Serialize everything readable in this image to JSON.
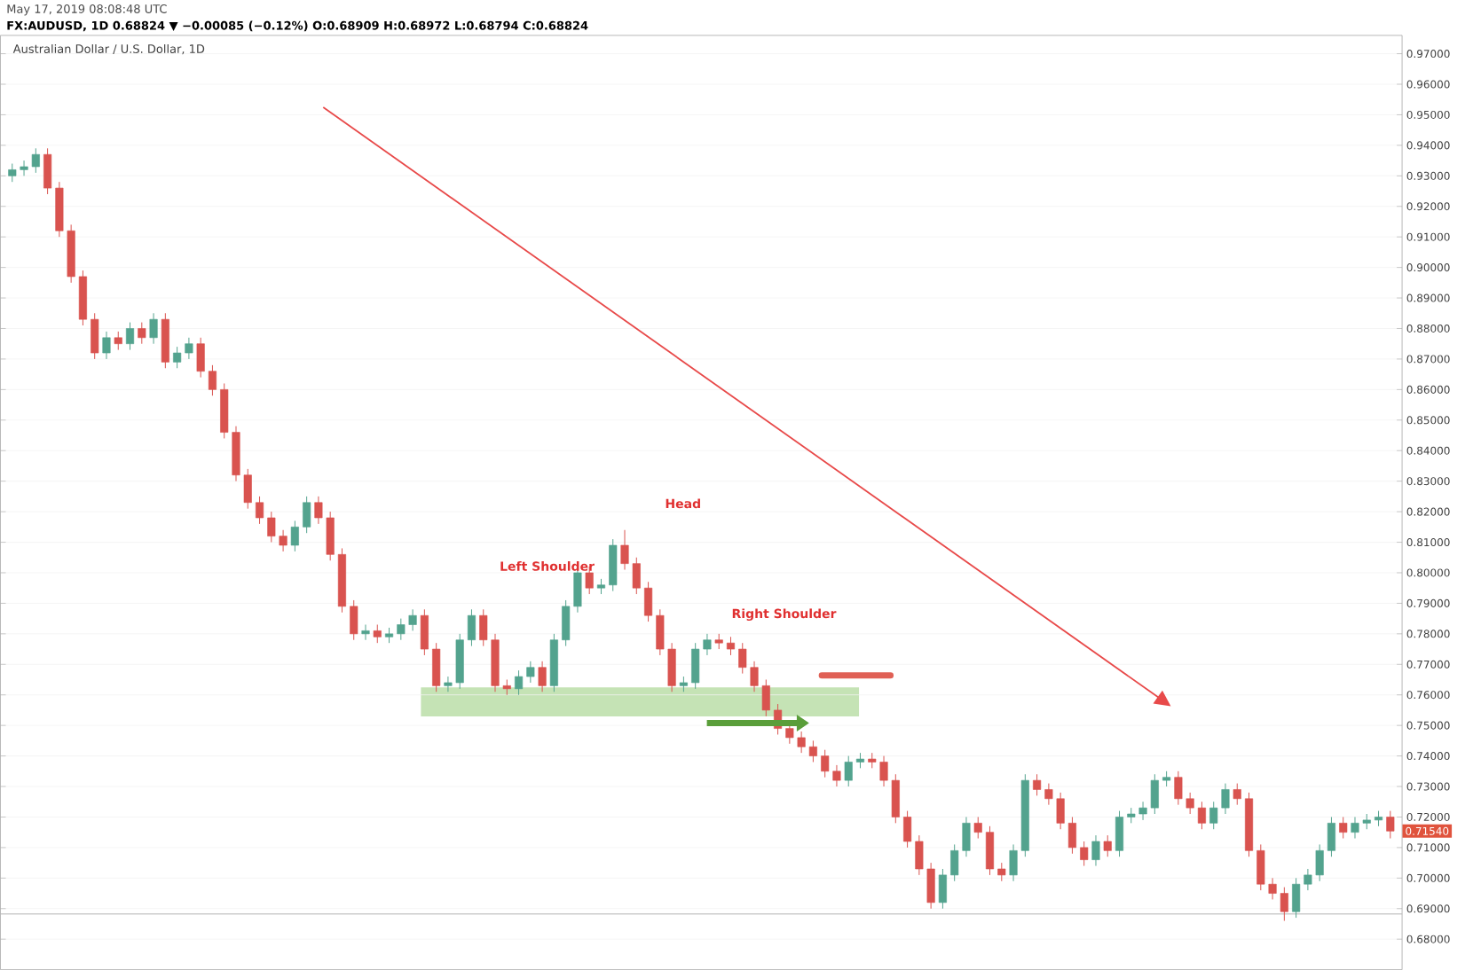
{
  "chart_data": {
    "type": "candlestick",
    "title": "May 17, 2019 08:08:48 UTC",
    "subtitle": "FX:AUDUSD, 1D 0.68824 ▼ −0.00085 (−0.12%) O:0.68909 H:0.68972 L:0.68794 C:0.68824",
    "annotations": [
      "Australian Dollar / U.S. Dollar, 1D",
      "Left Shoulder",
      "Head",
      "Right Shoulder",
      "0.71540"
    ],
    "categories": [
      null,
      null,
      null,
      null,
      null,
      null,
      null,
      null,
      null,
      null,
      null,
      null,
      null,
      null,
      null,
      null,
      null,
      null,
      null,
      null,
      null,
      null,
      null,
      null,
      null,
      null,
      null,
      null,
      null,
      null,
      null,
      null,
      null,
      null,
      null,
      null,
      null,
      null,
      null,
      null,
      null,
      null,
      null,
      null,
      null,
      null,
      null,
      null,
      null,
      null,
      null,
      null,
      null,
      null,
      null,
      null,
      null,
      null,
      null,
      null,
      null,
      null,
      null,
      null,
      null,
      null,
      null,
      null,
      null,
      null,
      null,
      null,
      null,
      null,
      null,
      null,
      null,
      null,
      null,
      null,
      null,
      null,
      null,
      null,
      null,
      null,
      null,
      null,
      null,
      null,
      null,
      null,
      null,
      null,
      null,
      null,
      null,
      null,
      null,
      null,
      null,
      null,
      null,
      null,
      null,
      null,
      null,
      null,
      null,
      null,
      null,
      null,
      null,
      null,
      null,
      null,
      null,
      null
    ],
    "ohlc": [
      [
        0.93,
        0.934,
        0.928,
        0.932
      ],
      [
        0.932,
        0.935,
        0.93,
        0.933
      ],
      [
        0.933,
        0.939,
        0.931,
        0.937
      ],
      [
        0.937,
        0.939,
        0.924,
        0.926
      ],
      [
        0.926,
        0.928,
        0.91,
        0.912
      ],
      [
        0.912,
        0.914,
        0.895,
        0.897
      ],
      [
        0.897,
        0.899,
        0.881,
        0.883
      ],
      [
        0.883,
        0.885,
        0.87,
        0.872
      ],
      [
        0.872,
        0.879,
        0.87,
        0.877
      ],
      [
        0.877,
        0.879,
        0.873,
        0.875
      ],
      [
        0.875,
        0.882,
        0.873,
        0.88
      ],
      [
        0.88,
        0.882,
        0.875,
        0.877
      ],
      [
        0.877,
        0.885,
        0.875,
        0.883
      ],
      [
        0.883,
        0.885,
        0.867,
        0.869
      ],
      [
        0.869,
        0.874,
        0.867,
        0.872
      ],
      [
        0.872,
        0.877,
        0.87,
        0.875
      ],
      [
        0.875,
        0.877,
        0.864,
        0.866
      ],
      [
        0.866,
        0.868,
        0.858,
        0.86
      ],
      [
        0.86,
        0.862,
        0.844,
        0.846
      ],
      [
        0.846,
        0.848,
        0.83,
        0.832
      ],
      [
        0.832,
        0.834,
        0.821,
        0.823
      ],
      [
        0.823,
        0.825,
        0.816,
        0.818
      ],
      [
        0.818,
        0.82,
        0.81,
        0.812
      ],
      [
        0.812,
        0.814,
        0.807,
        0.809
      ],
      [
        0.809,
        0.817,
        0.807,
        0.815
      ],
      [
        0.815,
        0.825,
        0.813,
        0.823
      ],
      [
        0.823,
        0.825,
        0.816,
        0.818
      ],
      [
        0.818,
        0.82,
        0.804,
        0.806
      ],
      [
        0.806,
        0.808,
        0.787,
        0.789
      ],
      [
        0.789,
        0.791,
        0.778,
        0.78
      ],
      [
        0.78,
        0.783,
        0.778,
        0.781
      ],
      [
        0.781,
        0.783,
        0.777,
        0.779
      ],
      [
        0.779,
        0.782,
        0.777,
        0.78
      ],
      [
        0.78,
        0.785,
        0.778,
        0.783
      ],
      [
        0.783,
        0.788,
        0.781,
        0.786
      ],
      [
        0.786,
        0.788,
        0.773,
        0.775
      ],
      [
        0.775,
        0.777,
        0.761,
        0.763
      ],
      [
        0.763,
        0.766,
        0.761,
        0.764
      ],
      [
        0.764,
        0.78,
        0.762,
        0.778
      ],
      [
        0.778,
        0.788,
        0.776,
        0.786
      ],
      [
        0.786,
        0.788,
        0.776,
        0.778
      ],
      [
        0.778,
        0.78,
        0.761,
        0.763
      ],
      [
        0.763,
        0.765,
        0.76,
        0.762
      ],
      [
        0.762,
        0.768,
        0.76,
        0.766
      ],
      [
        0.766,
        0.771,
        0.764,
        0.769
      ],
      [
        0.769,
        0.771,
        0.761,
        0.763
      ],
      [
        0.763,
        0.78,
        0.761,
        0.778
      ],
      [
        0.778,
        0.791,
        0.776,
        0.789
      ],
      [
        0.789,
        0.802,
        0.787,
        0.8
      ],
      [
        0.8,
        0.802,
        0.793,
        0.795
      ],
      [
        0.795,
        0.798,
        0.793,
        0.796
      ],
      [
        0.796,
        0.811,
        0.794,
        0.809
      ],
      [
        0.809,
        0.814,
        0.801,
        0.803
      ],
      [
        0.803,
        0.805,
        0.793,
        0.795
      ],
      [
        0.795,
        0.797,
        0.784,
        0.786
      ],
      [
        0.786,
        0.788,
        0.773,
        0.775
      ],
      [
        0.775,
        0.777,
        0.761,
        0.763
      ],
      [
        0.763,
        0.766,
        0.761,
        0.764
      ],
      [
        0.764,
        0.777,
        0.762,
        0.775
      ],
      [
        0.775,
        0.78,
        0.773,
        0.778
      ],
      [
        0.778,
        0.78,
        0.775,
        0.777
      ],
      [
        0.777,
        0.779,
        0.773,
        0.775
      ],
      [
        0.775,
        0.777,
        0.767,
        0.769
      ],
      [
        0.769,
        0.771,
        0.761,
        0.763
      ],
      [
        0.763,
        0.765,
        0.753,
        0.755
      ],
      [
        0.755,
        0.757,
        0.747,
        0.749
      ],
      [
        0.749,
        0.751,
        0.744,
        0.746
      ],
      [
        0.746,
        0.748,
        0.741,
        0.743
      ],
      [
        0.743,
        0.745,
        0.738,
        0.74
      ],
      [
        0.74,
        0.742,
        0.733,
        0.735
      ],
      [
        0.735,
        0.737,
        0.73,
        0.732
      ],
      [
        0.732,
        0.74,
        0.73,
        0.738
      ],
      [
        0.738,
        0.741,
        0.736,
        0.739
      ],
      [
        0.739,
        0.741,
        0.736,
        0.738
      ],
      [
        0.738,
        0.74,
        0.73,
        0.732
      ],
      [
        0.732,
        0.734,
        0.718,
        0.72
      ],
      [
        0.72,
        0.722,
        0.71,
        0.712
      ],
      [
        0.712,
        0.714,
        0.701,
        0.703
      ],
      [
        0.703,
        0.705,
        0.69,
        0.692
      ],
      [
        0.692,
        0.703,
        0.69,
        0.701
      ],
      [
        0.701,
        0.711,
        0.699,
        0.709
      ],
      [
        0.709,
        0.72,
        0.707,
        0.718
      ],
      [
        0.718,
        0.72,
        0.713,
        0.715
      ],
      [
        0.715,
        0.717,
        0.701,
        0.703
      ],
      [
        0.703,
        0.705,
        0.699,
        0.701
      ],
      [
        0.701,
        0.711,
        0.699,
        0.709
      ],
      [
        0.709,
        0.734,
        0.707,
        0.732
      ],
      [
        0.732,
        0.734,
        0.727,
        0.729
      ],
      [
        0.729,
        0.731,
        0.724,
        0.726
      ],
      [
        0.726,
        0.728,
        0.716,
        0.718
      ],
      [
        0.718,
        0.72,
        0.708,
        0.71
      ],
      [
        0.71,
        0.712,
        0.704,
        0.706
      ],
      [
        0.706,
        0.714,
        0.704,
        0.712
      ],
      [
        0.712,
        0.714,
        0.707,
        0.709
      ],
      [
        0.709,
        0.722,
        0.707,
        0.72
      ],
      [
        0.72,
        0.723,
        0.718,
        0.721
      ],
      [
        0.721,
        0.725,
        0.719,
        0.723
      ],
      [
        0.723,
        0.734,
        0.721,
        0.732
      ],
      [
        0.732,
        0.735,
        0.73,
        0.733
      ],
      [
        0.733,
        0.735,
        0.724,
        0.726
      ],
      [
        0.726,
        0.728,
        0.721,
        0.723
      ],
      [
        0.723,
        0.725,
        0.716,
        0.718
      ],
      [
        0.718,
        0.725,
        0.716,
        0.723
      ],
      [
        0.723,
        0.731,
        0.721,
        0.729
      ],
      [
        0.729,
        0.731,
        0.724,
        0.726
      ],
      [
        0.726,
        0.728,
        0.707,
        0.709
      ],
      [
        0.709,
        0.711,
        0.696,
        0.698
      ],
      [
        0.698,
        0.7,
        0.693,
        0.695
      ],
      [
        0.695,
        0.697,
        0.686,
        0.689
      ],
      [
        0.689,
        0.7,
        0.687,
        0.698
      ],
      [
        0.698,
        0.703,
        0.696,
        0.701
      ],
      [
        0.701,
        0.711,
        0.699,
        0.709
      ],
      [
        0.709,
        0.72,
        0.707,
        0.718
      ],
      [
        0.718,
        0.72,
        0.713,
        0.715
      ],
      [
        0.715,
        0.72,
        0.713,
        0.718
      ],
      [
        0.718,
        0.721,
        0.716,
        0.719
      ],
      [
        0.719,
        0.722,
        0.717,
        0.72
      ],
      [
        0.72,
        0.722,
        0.713,
        0.7154
      ]
    ],
    "ylim": [
      0.67,
      0.976
    ],
    "yticks": [
      {
        "value": 0.68,
        "label": "0.68000"
      },
      {
        "value": 0.69,
        "label": "0.69000"
      },
      {
        "value": 0.7,
        "label": "0.70000"
      },
      {
        "value": 0.71,
        "label": "0.71000"
      },
      {
        "value": 0.72,
        "label": "0.72000"
      },
      {
        "value": 0.73,
        "label": "0.73000"
      },
      {
        "value": 0.74,
        "label": "0.74000"
      },
      {
        "value": 0.75,
        "label": "0.75000"
      },
      {
        "value": 0.76,
        "label": "0.76000"
      },
      {
        "value": 0.77,
        "label": "0.77000"
      },
      {
        "value": 0.78,
        "label": "0.78000"
      },
      {
        "value": 0.79,
        "label": "0.79000"
      },
      {
        "value": 0.8,
        "label": "0.80000"
      },
      {
        "value": 0.81,
        "label": "0.81000"
      },
      {
        "value": 0.82,
        "label": "0.82000"
      },
      {
        "value": 0.83,
        "label": "0.83000"
      },
      {
        "value": 0.84,
        "label": "0.84000"
      },
      {
        "value": 0.85,
        "label": "0.85000"
      },
      {
        "value": 0.86,
        "label": "0.86000"
      },
      {
        "value": 0.87,
        "label": "0.87000"
      },
      {
        "value": 0.88,
        "label": "0.88000"
      },
      {
        "value": 0.89,
        "label": "0.89000"
      },
      {
        "value": 0.9,
        "label": "0.90000"
      },
      {
        "value": 0.91,
        "label": "0.91000"
      },
      {
        "value": 0.92,
        "label": "0.92000"
      },
      {
        "value": 0.93,
        "label": "0.93000"
      },
      {
        "value": 0.94,
        "label": "0.94000"
      },
      {
        "value": 0.95,
        "label": "0.95000"
      },
      {
        "value": 0.96,
        "label": "0.96000"
      },
      {
        "value": 0.97,
        "label": "0.97000"
      }
    ],
    "ref_lines": [
      {
        "axis": "y",
        "value": 0.68824,
        "color": "#b4b4b4"
      }
    ],
    "grid": "y"
  }
}
